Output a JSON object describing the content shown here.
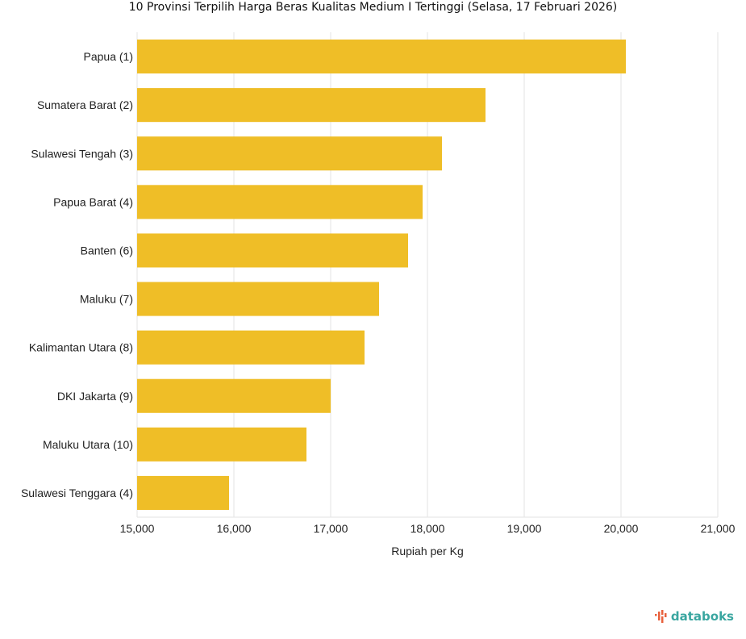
{
  "chart_data": {
    "type": "bar",
    "orientation": "horizontal",
    "title": "10 Provinsi Terpilih Harga Beras Kualitas Medium I Tertinggi (Selasa, 17 Februari 2026)",
    "xlabel": "Rupiah per Kg",
    "ylabel": "",
    "categories": [
      "Papua (1)",
      "Sumatera Barat (2)",
      "Sulawesi Tengah (3)",
      "Papua Barat (4)",
      "Banten (6)",
      "Maluku (7)",
      "Kalimantan Utara (8)",
      "DKI Jakarta (9)",
      "Maluku Utara (10)",
      "Sulawesi Tenggara (4)"
    ],
    "values": [
      20050,
      18600,
      18150,
      17950,
      17800,
      17500,
      17350,
      17000,
      16750,
      15950
    ],
    "xlim": [
      15000,
      21000
    ],
    "xticks": [
      15000,
      16000,
      17000,
      18000,
      19000,
      20000,
      21000
    ],
    "xtick_labels": [
      "15,000",
      "16,000",
      "17,000",
      "18,000",
      "19,000",
      "20,000",
      "21,000"
    ],
    "grid": true,
    "bar_color": "#efbe27",
    "grid_color": "#e3e3e3"
  },
  "brand": {
    "name": "databoks",
    "accent": "#3aa6a0",
    "icon_color": "#e8603c",
    "icon": "databoks-logo-icon"
  }
}
